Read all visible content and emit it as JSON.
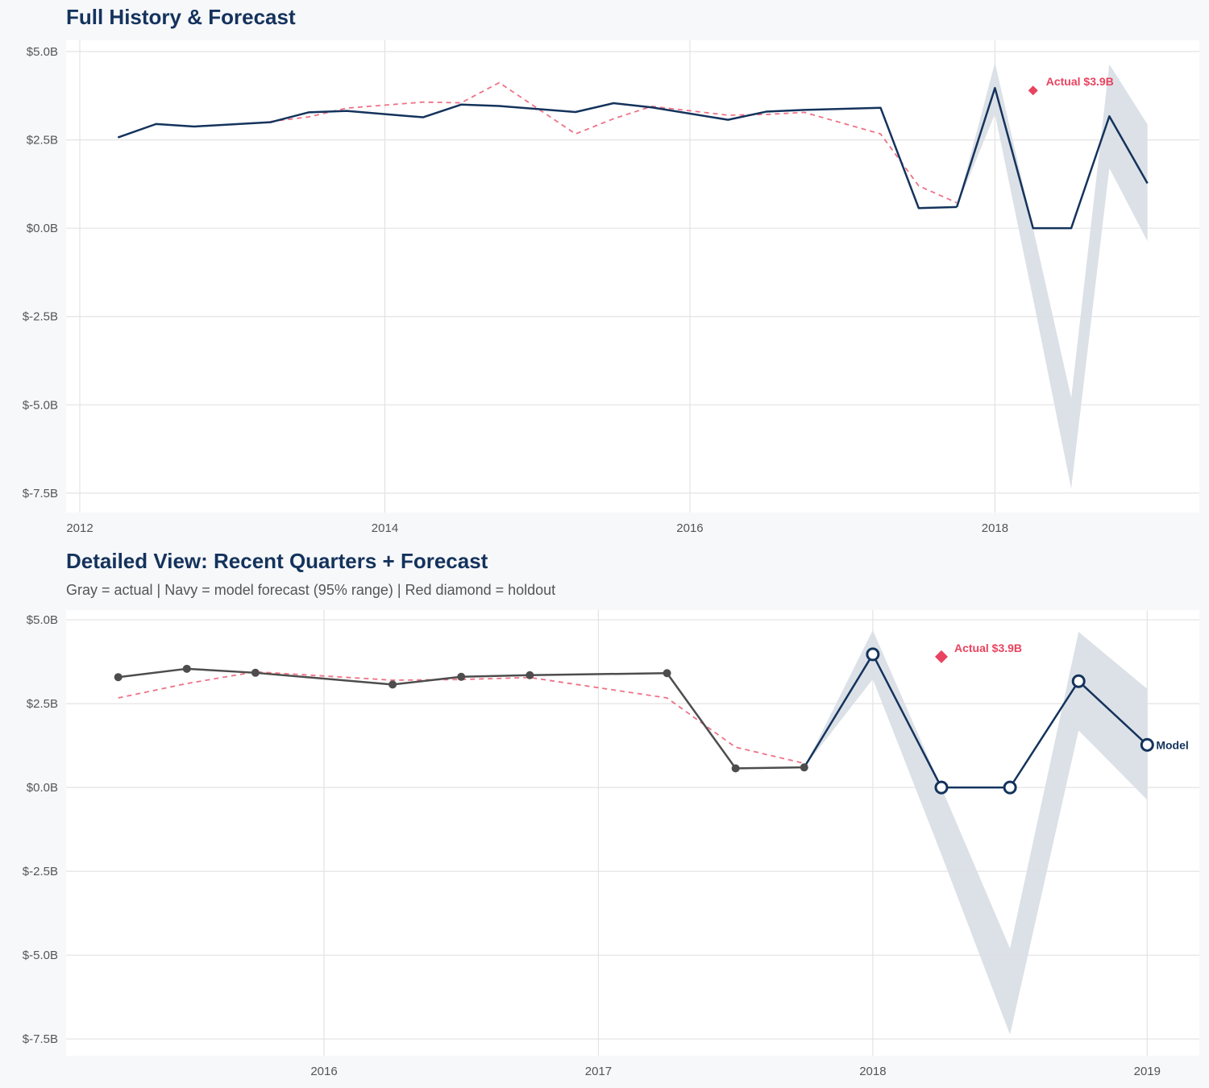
{
  "chart_data": [
    {
      "type": "line",
      "title": "Full History & Forecast",
      "xlim": [
        2011.91,
        2019.34
      ],
      "ylim": [
        -8.05,
        5.32
      ],
      "x_ticks": [
        2012,
        2014,
        2016,
        2018
      ],
      "x_tick_labels": [
        "2012",
        "2014",
        "2016",
        "2018"
      ],
      "y_ticks": [
        5,
        2.5,
        0,
        -2.5,
        -5,
        -7.5
      ],
      "y_tick_labels": [
        "$5.0B",
        "$2.5B",
        "$0.0B",
        "$-2.5B",
        "$-5.0B",
        "$-7.5B"
      ],
      "grid": true,
      "show_markers": false,
      "show_model_label": false,
      "actual_color": "#14335c"
    },
    {
      "type": "line",
      "title": "Detailed View: Recent Quarters + Forecast",
      "subtitle": "Gray = actual  |  Navy = model forecast (95% range)  |  Red diamond = holdout",
      "xlim": [
        2015.06,
        2019.19
      ],
      "ylim": [
        -8.0,
        5.29
      ],
      "x_ticks": [
        2016,
        2017,
        2018,
        2019
      ],
      "x_tick_labels": [
        "2016",
        "2017",
        "2018",
        "2019"
      ],
      "y_ticks": [
        5,
        2.5,
        0,
        -2.5,
        -5,
        -7.5
      ],
      "y_tick_labels": [
        "$5.0B",
        "$2.5B",
        "$0.0B",
        "$-2.5B",
        "$-5.0B",
        "$-7.5B"
      ],
      "grid": true,
      "show_markers": true,
      "show_model_label": true,
      "actual_color": "#4d4d4d",
      "x_from": 2015.25
    }
  ],
  "series": {
    "actual": {
      "x": [
        2012.25,
        2012.5,
        2012.75,
        2013.25,
        2013.5,
        2013.75,
        2014.25,
        2014.5,
        2014.75,
        2015.25,
        2015.5,
        2015.75,
        2016.25,
        2016.5,
        2016.75,
        2017.25,
        2017.5,
        2017.75
      ],
      "y": [
        2.57,
        2.95,
        2.88,
        3.0,
        3.28,
        3.32,
        3.14,
        3.5,
        3.46,
        3.29,
        3.54,
        3.42,
        3.07,
        3.3,
        3.35,
        3.41,
        0.57,
        0.6
      ]
    },
    "fitted": {
      "x": [
        2013.25,
        2013.5,
        2013.75,
        2014.25,
        2014.5,
        2014.75,
        2015.25,
        2015.5,
        2015.75,
        2016.25,
        2016.5,
        2016.75,
        2017.25,
        2017.5,
        2017.75
      ],
      "y": [
        3.02,
        3.15,
        3.4,
        3.57,
        3.55,
        4.12,
        2.67,
        3.1,
        3.45,
        3.2,
        3.22,
        3.28,
        2.67,
        1.2,
        0.72
      ]
    },
    "forecast": {
      "name": "Model",
      "x": [
        2017.75,
        2018.0,
        2018.25,
        2018.5,
        2018.75,
        2019.0
      ],
      "y": [
        0.6,
        3.97,
        0.0,
        0.0,
        3.17,
        1.27
      ],
      "lower": [
        0.6,
        3.23,
        -2.0,
        -7.37,
        1.7,
        -0.37
      ],
      "upper": [
        0.6,
        4.69,
        0.0,
        -4.8,
        4.64,
        2.94
      ]
    },
    "holdout": {
      "x": 2018.25,
      "y": 3.9,
      "label": "Actual $3.9B"
    }
  },
  "colors": {
    "navy": "#14335c",
    "gray": "#4d4d4d",
    "red": "#e8435f",
    "band": "#dadfe6",
    "grid": "#e3e3e3",
    "panel": "#ffffff",
    "background": "#f7f8fa"
  }
}
